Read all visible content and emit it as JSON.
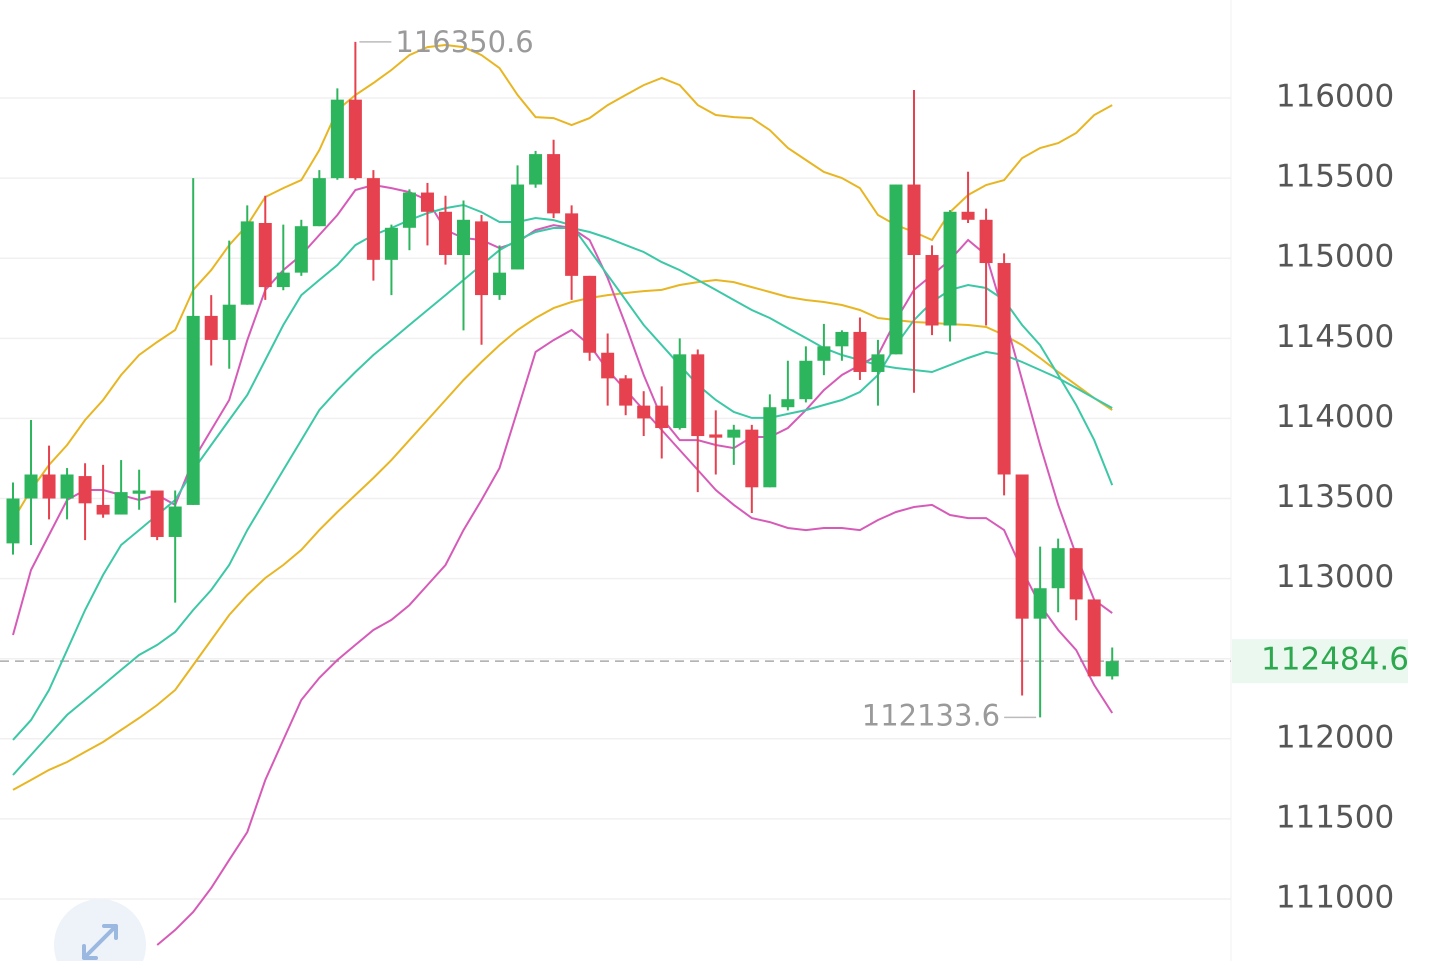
{
  "chart_data": {
    "type": "candlestick",
    "up_color": "#2db55d",
    "down_color": "#e6414f",
    "open": [
      113220,
      113500,
      113650,
      113500,
      113640,
      113460,
      113400,
      113530,
      113550,
      113260,
      113460,
      114640,
      114490,
      114710,
      115220,
      114820,
      114910,
      115200,
      115500,
      115990,
      115500,
      114990,
      115190,
      115410,
      115290,
      115020,
      115230,
      114770,
      114930,
      115460,
      115650,
      115280,
      114890,
      114410,
      114250,
      114080,
      114080,
      113940,
      114400,
      113900,
      113880,
      113930,
      113570,
      114070,
      114120,
      114360,
      114450,
      114540,
      114290,
      114400,
      115460,
      115020,
      114580,
      115290,
      115240,
      114970,
      113650,
      112750,
      112940,
      113190,
      112870,
      112390
    ],
    "high": [
      113600,
      113990,
      113830,
      113690,
      113720,
      113710,
      113740,
      113680,
      113550,
      113550,
      115500,
      114770,
      115110,
      115330,
      115390,
      115210,
      115240,
      115550,
      116060,
      116350.6,
      115550,
      115210,
      115430,
      115470,
      115390,
      115360,
      115270,
      115080,
      115580,
      115670,
      115740,
      115330,
      114890,
      114530,
      114270,
      114170,
      114200,
      114500,
      114430,
      114050,
      113960,
      113960,
      114150,
      114360,
      114450,
      114590,
      114550,
      114630,
      114490,
      115460,
      116050,
      115080,
      115300,
      115540,
      115310,
      115030,
      113650,
      113200,
      113250,
      113190,
      112870,
      112570
    ],
    "low": [
      113150,
      113210,
      113370,
      113370,
      113240,
      113380,
      113400,
      113430,
      113240,
      112850,
      113460,
      114330,
      114310,
      114710,
      114740,
      114800,
      114890,
      115200,
      115490,
      115490,
      114860,
      114770,
      115050,
      115080,
      114960,
      114550,
      114460,
      114740,
      114930,
      115440,
      115250,
      114740,
      114360,
      114080,
      114020,
      113890,
      113750,
      113930,
      113540,
      113650,
      113710,
      113410,
      113570,
      114050,
      114100,
      114270,
      114360,
      114240,
      114080,
      114400,
      114160,
      114520,
      114480,
      115220,
      114580,
      113520,
      112270,
      112133.6,
      112790,
      112740,
      112390,
      112370
    ],
    "close": [
      113500,
      113650,
      113500,
      113650,
      113470,
      113400,
      113540,
      113550,
      113260,
      113450,
      114640,
      114490,
      114710,
      115230,
      114820,
      114910,
      115200,
      115500,
      115990,
      115500,
      114990,
      115190,
      115410,
      115290,
      115020,
      115240,
      114770,
      114910,
      115460,
      115650,
      115280,
      114890,
      114410,
      114250,
      114080,
      114000,
      113940,
      114400,
      113890,
      113880,
      113930,
      113570,
      114070,
      114120,
      114360,
      114450,
      114540,
      114290,
      114400,
      115460,
      115020,
      114580,
      115290,
      115240,
      114970,
      113650,
      112750,
      112940,
      113190,
      112870,
      112390,
      112484.6
    ],
    "overlays": [
      {
        "color": "#e8b623",
        "values": [
          113366,
          113553,
          113709,
          113834,
          113990,
          114115,
          114271,
          114396,
          114477,
          114552,
          114802,
          114926,
          115082,
          115207,
          115382,
          115438,
          115488,
          115675,
          115925,
          116019,
          116094,
          116175,
          116268,
          116318,
          116331,
          116318,
          116268,
          116187,
          116019,
          115881,
          115875,
          115831,
          115875,
          115956,
          116019,
          116081,
          116125,
          116081,
          115956,
          115894,
          115881,
          115875,
          115800,
          115688,
          115613,
          115538,
          115501,
          115438,
          115270,
          115207,
          115164,
          115114,
          115288,
          115395,
          115457,
          115488,
          115625,
          115688,
          115719,
          115782,
          115894,
          115956
        ]
      },
      {
        "color": "#e8b623",
        "values": [
          111681,
          111743,
          111806,
          111855,
          111918,
          111980,
          112055,
          112130,
          112211,
          112305,
          112461,
          112617,
          112773,
          112898,
          113004,
          113085,
          113179,
          113303,
          113416,
          113522,
          113628,
          113740,
          113865,
          113990,
          114115,
          114240,
          114352,
          114458,
          114552,
          114627,
          114689,
          114727,
          114752,
          114770,
          114783,
          114795,
          114802,
          114833,
          114851,
          114864,
          114851,
          114820,
          114789,
          114758,
          114739,
          114727,
          114708,
          114677,
          114627,
          114614,
          114602,
          114596,
          114589,
          114583,
          114571,
          114521,
          114458,
          114377,
          114290,
          114209,
          114127,
          114052
        ]
      },
      {
        "color": "#d65bb8",
        "values": [
          null,
          null,
          null,
          null,
          null,
          null,
          null,
          null,
          110713,
          110807,
          110919,
          111069,
          111244,
          111418,
          111743,
          111993,
          112242,
          112380,
          112492,
          112586,
          112679,
          112742,
          112835,
          112960,
          113085,
          113303,
          113491,
          113690,
          114052,
          114415,
          114489,
          114552,
          114458,
          114302,
          114177,
          114052,
          113928,
          113803,
          113678,
          113553,
          113460,
          113378,
          113353,
          113316,
          113303,
          113316,
          113316,
          113303,
          113366,
          113416,
          113447,
          113460,
          113397,
          113378,
          113378,
          113303,
          113054,
          112835,
          112679,
          112554,
          112336,
          112161
        ]
      },
      {
        "color": "#d65bb8",
        "values": [
          112648,
          113054,
          113272,
          113491,
          113553,
          113553,
          113522,
          113491,
          113522,
          113460,
          113740,
          113928,
          114115,
          114489,
          114802,
          114926,
          115020,
          115145,
          115270,
          115426,
          115457,
          115438,
          115413,
          115363,
          115176,
          115126,
          115114,
          115064,
          115101,
          115176,
          115207,
          115189,
          115114,
          114876,
          114583,
          114271,
          114003,
          113865,
          113865,
          113834,
          113815,
          113884,
          113884,
          113940,
          114052,
          114177,
          114271,
          114333,
          114396,
          114614,
          114802,
          114895,
          114989,
          115114,
          115020,
          114645,
          114240,
          113834,
          113460,
          113147,
          112867,
          112785
        ]
      },
      {
        "color": "#3cc8a6",
        "values": [
          111993,
          112117,
          112305,
          112554,
          112804,
          113023,
          113210,
          113303,
          113397,
          113491,
          113678,
          113834,
          113990,
          114146,
          114365,
          114583,
          114770,
          114864,
          114958,
          115082,
          115145,
          115189,
          115238,
          115282,
          115313,
          115332,
          115288,
          115226,
          115226,
          115251,
          115238,
          115207,
          115051,
          114895,
          114739,
          114583,
          114458,
          114333,
          114209,
          114115,
          114040,
          114003,
          114003,
          114028,
          114052,
          114084,
          114115,
          114165,
          114271,
          114458,
          114614,
          114727,
          114802,
          114833,
          114814,
          114739,
          114583,
          114458,
          114271,
          114084,
          113865,
          113584
        ]
      },
      {
        "color": "#3cc8a6",
        "values": [
          111774,
          111899,
          112024,
          112149,
          112242,
          112336,
          112430,
          112523,
          112586,
          112667,
          112804,
          112929,
          113085,
          113303,
          113491,
          113678,
          113865,
          114052,
          114177,
          114290,
          114396,
          114489,
          114583,
          114677,
          114770,
          114864,
          114958,
          115051,
          115114,
          115164,
          115189,
          115189,
          115164,
          115126,
          115082,
          115039,
          114976,
          114926,
          114864,
          114802,
          114739,
          114677,
          114627,
          114564,
          114502,
          114439,
          114396,
          114365,
          114333,
          114315,
          114302,
          114290,
          114333,
          114377,
          114415,
          114396,
          114352,
          114302,
          114252,
          114190,
          114127,
          114065
        ]
      }
    ],
    "ylim": [
      110613,
      116612
    ],
    "yticks": [
      111000,
      111500,
      112000,
      112500,
      113000,
      113500,
      114000,
      114500,
      115000,
      115500,
      116000
    ],
    "grid": true
  }
}
